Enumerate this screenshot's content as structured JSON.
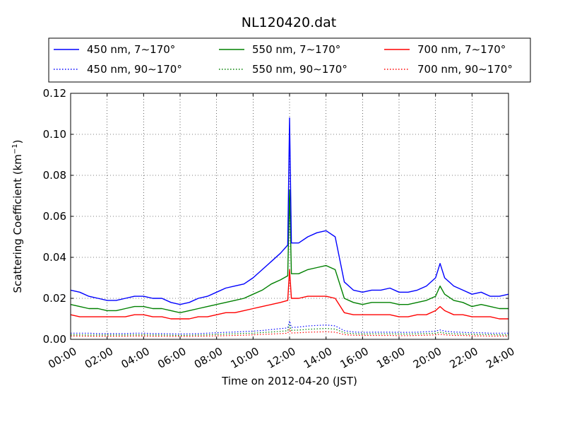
{
  "chart_data": {
    "type": "line",
    "title": "NL120420.dat",
    "xlabel": "Time on 2012-04-20 (JST)",
    "ylabel": "Scattering Coefficient (km",
    "ylabel_sup": "−1",
    "ylabel_end": ")",
    "x_unit": "hours",
    "xlim": [
      0,
      24
    ],
    "ylim": [
      0,
      0.12
    ],
    "x_tick_values": [
      0,
      2,
      4,
      6,
      8,
      10,
      12,
      14,
      16,
      18,
      20,
      22,
      24
    ],
    "x_ticks": [
      "00:00",
      "02:00",
      "04:00",
      "06:00",
      "08:00",
      "10:00",
      "12:00",
      "14:00",
      "16:00",
      "18:00",
      "20:00",
      "22:00",
      "24:00"
    ],
    "y_tick_values": [
      0,
      0.02,
      0.04,
      0.06,
      0.08,
      0.1,
      0.12
    ],
    "y_ticks": [
      "0.00",
      "0.02",
      "0.04",
      "0.06",
      "0.08",
      "0.10",
      "0.12"
    ],
    "grid": true,
    "legend_position": "top",
    "x": [
      0,
      0.5,
      1,
      1.5,
      2,
      2.5,
      3,
      3.5,
      4,
      4.5,
      5,
      5.5,
      6,
      6.5,
      7,
      7.5,
      8,
      8.5,
      9,
      9.5,
      10,
      10.5,
      11,
      11.5,
      11.9,
      12,
      12.1,
      12.5,
      13,
      13.5,
      14,
      14.5,
      15,
      15.5,
      16,
      16.5,
      17,
      17.5,
      18,
      18.5,
      19,
      19.5,
      20,
      20.25,
      20.5,
      21,
      21.5,
      22,
      22.5,
      23,
      23.5,
      24
    ],
    "series": [
      {
        "name": "450 nm, 7∼170°",
        "color": "#0000ff",
        "dash": "solid",
        "values": [
          0.024,
          0.023,
          0.021,
          0.02,
          0.019,
          0.019,
          0.02,
          0.021,
          0.021,
          0.02,
          0.02,
          0.018,
          0.017,
          0.018,
          0.02,
          0.021,
          0.023,
          0.025,
          0.026,
          0.027,
          0.03,
          0.034,
          0.038,
          0.042,
          0.046,
          0.108,
          0.047,
          0.047,
          0.05,
          0.052,
          0.053,
          0.05,
          0.028,
          0.024,
          0.023,
          0.024,
          0.024,
          0.025,
          0.023,
          0.023,
          0.024,
          0.026,
          0.03,
          0.037,
          0.03,
          0.026,
          0.024,
          0.022,
          0.023,
          0.021,
          0.021,
          0.022
        ]
      },
      {
        "name": "550 nm, 7∼170°",
        "color": "#008000",
        "dash": "solid",
        "values": [
          0.017,
          0.016,
          0.015,
          0.015,
          0.014,
          0.014,
          0.015,
          0.016,
          0.016,
          0.015,
          0.015,
          0.014,
          0.013,
          0.014,
          0.015,
          0.016,
          0.017,
          0.018,
          0.019,
          0.02,
          0.022,
          0.024,
          0.027,
          0.029,
          0.031,
          0.073,
          0.032,
          0.032,
          0.034,
          0.035,
          0.036,
          0.034,
          0.02,
          0.018,
          0.017,
          0.018,
          0.018,
          0.018,
          0.017,
          0.017,
          0.018,
          0.019,
          0.021,
          0.026,
          0.022,
          0.019,
          0.018,
          0.016,
          0.017,
          0.016,
          0.015,
          0.015
        ]
      },
      {
        "name": "700 nm, 7∼170°",
        "color": "#ff0000",
        "dash": "solid",
        "values": [
          0.012,
          0.011,
          0.011,
          0.011,
          0.011,
          0.011,
          0.011,
          0.012,
          0.012,
          0.011,
          0.011,
          0.01,
          0.01,
          0.01,
          0.011,
          0.011,
          0.012,
          0.013,
          0.013,
          0.014,
          0.015,
          0.016,
          0.017,
          0.018,
          0.019,
          0.034,
          0.02,
          0.02,
          0.021,
          0.021,
          0.021,
          0.02,
          0.013,
          0.012,
          0.012,
          0.012,
          0.012,
          0.012,
          0.011,
          0.011,
          0.012,
          0.012,
          0.014,
          0.016,
          0.014,
          0.012,
          0.012,
          0.011,
          0.011,
          0.011,
          0.01,
          0.01
        ]
      },
      {
        "name": "450 nm, 90∼170°",
        "color": "#0000ff",
        "dash": "dotted",
        "values": [
          0.003,
          0.003,
          0.003,
          0.0028,
          0.0028,
          0.0028,
          0.0028,
          0.003,
          0.003,
          0.0028,
          0.0028,
          0.0027,
          0.0026,
          0.0027,
          0.0028,
          0.003,
          0.0032,
          0.0034,
          0.0036,
          0.0038,
          0.004,
          0.0043,
          0.0048,
          0.0052,
          0.0056,
          0.009,
          0.0058,
          0.006,
          0.0065,
          0.0068,
          0.007,
          0.0066,
          0.0042,
          0.0036,
          0.0034,
          0.0035,
          0.0035,
          0.0035,
          0.0034,
          0.0034,
          0.0035,
          0.0037,
          0.004,
          0.0046,
          0.004,
          0.0036,
          0.0034,
          0.0032,
          0.0032,
          0.003,
          0.003,
          0.003
        ]
      },
      {
        "name": "550 nm, 90∼170°",
        "color": "#008000",
        "dash": "dotted",
        "values": [
          0.0022,
          0.0022,
          0.0021,
          0.0021,
          0.0021,
          0.0021,
          0.0021,
          0.0022,
          0.0022,
          0.0021,
          0.0021,
          0.002,
          0.0019,
          0.002,
          0.0021,
          0.0022,
          0.0024,
          0.0026,
          0.0027,
          0.0029,
          0.003,
          0.0033,
          0.0036,
          0.0039,
          0.0042,
          0.007,
          0.0044,
          0.0045,
          0.0049,
          0.0051,
          0.0053,
          0.005,
          0.0032,
          0.0028,
          0.0026,
          0.0027,
          0.0027,
          0.0027,
          0.0026,
          0.0026,
          0.0027,
          0.0028,
          0.003,
          0.0035,
          0.003,
          0.0027,
          0.0026,
          0.0024,
          0.0024,
          0.0023,
          0.0022,
          0.0022
        ]
      },
      {
        "name": "700 nm, 90∼170°",
        "color": "#ff0000",
        "dash": "dotted",
        "values": [
          0.0016,
          0.0016,
          0.0015,
          0.0015,
          0.0015,
          0.0015,
          0.0015,
          0.0016,
          0.0016,
          0.0015,
          0.0015,
          0.0014,
          0.0014,
          0.0014,
          0.0015,
          0.0016,
          0.0017,
          0.0018,
          0.0019,
          0.002,
          0.0022,
          0.0024,
          0.0026,
          0.0028,
          0.003,
          0.005,
          0.0031,
          0.0032,
          0.0035,
          0.0036,
          0.0037,
          0.0035,
          0.0023,
          0.002,
          0.0019,
          0.0019,
          0.0019,
          0.0019,
          0.0018,
          0.0018,
          0.0019,
          0.002,
          0.0022,
          0.0025,
          0.0022,
          0.0019,
          0.0019,
          0.0017,
          0.0017,
          0.0016,
          0.0016,
          0.0016
        ]
      }
    ],
    "legend_order": [
      0,
      1,
      2,
      3,
      4,
      5
    ]
  }
}
